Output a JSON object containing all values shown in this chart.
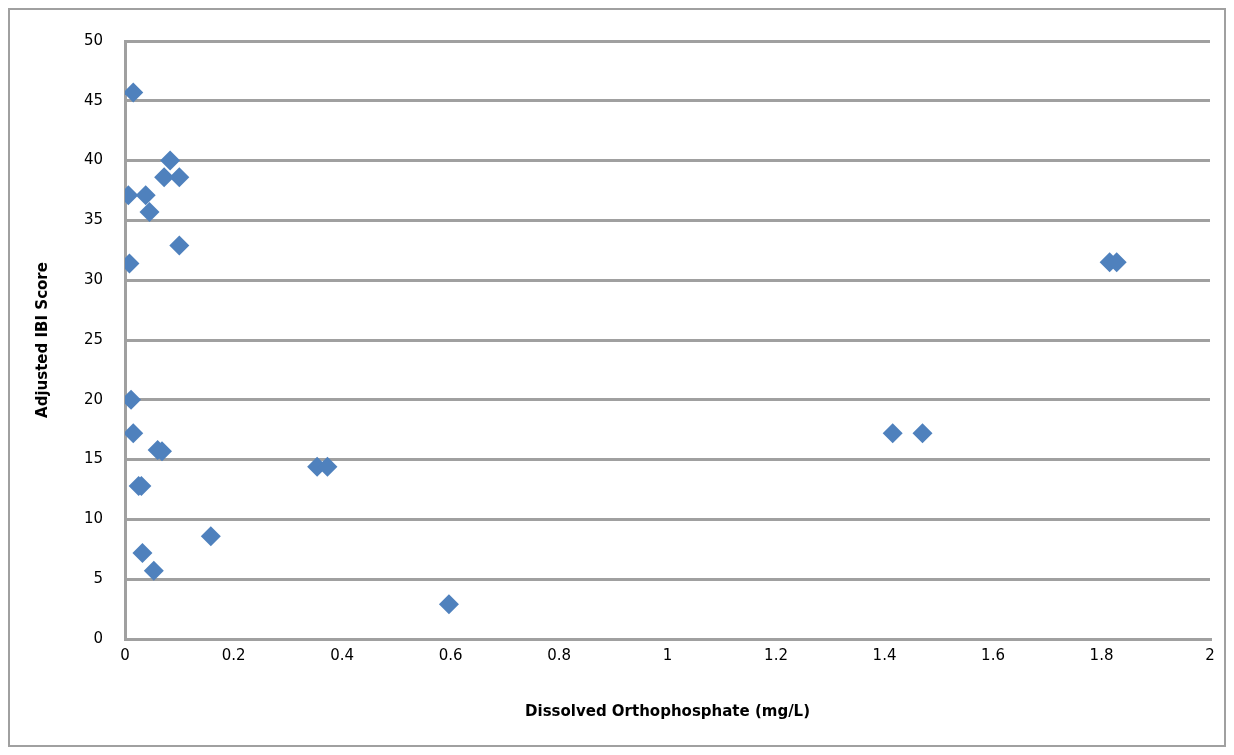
{
  "chart_data": {
    "type": "scatter",
    "xlabel": "Dissolved Orthophosphate (mg/L)",
    "ylabel": "Adjusted IBI Score",
    "x": [
      0.015,
      0.083,
      0.072,
      0.1,
      0.006,
      0.038,
      0.045,
      0.1,
      0.008,
      0.011,
      0.015,
      0.06,
      0.068,
      0.025,
      0.03,
      0.032,
      0.053,
      0.158,
      0.354,
      0.373,
      0.597,
      1.415,
      1.47,
      1.815,
      1.828
    ],
    "values": [
      45.7,
      40,
      38.6,
      38.6,
      37.1,
      37.1,
      35.7,
      32.9,
      31.4,
      20,
      17.2,
      15.8,
      15.7,
      12.8,
      12.8,
      7.2,
      5.7,
      8.6,
      14.4,
      14.4,
      2.9,
      17.2,
      17.2,
      31.5,
      31.5
    ],
    "color": "#4f81bd",
    "marker": "diamond",
    "xlim": [
      0,
      2
    ],
    "xticks": [
      0,
      0.2,
      0.4,
      0.6,
      0.8,
      1,
      1.2,
      1.4,
      1.6,
      1.8,
      2
    ],
    "ylim": [
      0,
      50
    ],
    "yticks": [
      0,
      5,
      10,
      15,
      20,
      25,
      30,
      35,
      40,
      45,
      50
    ],
    "grid": "y",
    "legend": false
  }
}
